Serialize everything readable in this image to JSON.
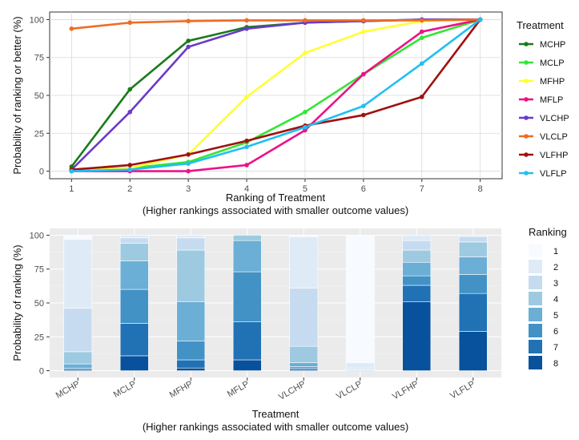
{
  "chart_data": [
    {
      "type": "line",
      "xlabel": "Ranking of Treatment",
      "xlabel_sub": "(Higher rankings associated with smaller outcome values)",
      "ylabel": "Probability of ranking or better (%)",
      "x": [
        1,
        2,
        3,
        4,
        5,
        6,
        7,
        8
      ],
      "xticks": [
        "1",
        "2",
        "3",
        "4",
        "5",
        "6",
        "7",
        "8"
      ],
      "yticks": [
        0,
        25,
        50,
        75,
        100
      ],
      "ylim": [
        0,
        100
      ],
      "legend_title": "Treatment",
      "legend_position": "right",
      "series": [
        {
          "name": "MCHP",
          "color": "#1a7a1a",
          "values": [
            3,
            54,
            86,
            95,
            98,
            99,
            100,
            100
          ]
        },
        {
          "name": "MCLP",
          "color": "#33e633",
          "values": [
            1,
            2,
            6,
            19,
            39,
            64,
            88,
            100
          ]
        },
        {
          "name": "MFHP",
          "color": "#ffff33",
          "values": [
            0,
            2,
            11,
            49,
            78,
            92,
            99,
            100
          ]
        },
        {
          "name": "MFLP",
          "color": "#ee1187",
          "values": [
            0,
            0,
            0,
            4,
            27,
            64,
            92,
            100
          ]
        },
        {
          "name": "VLCHP",
          "color": "#6a3acb",
          "values": [
            1,
            39,
            82,
            94,
            98,
            99,
            100,
            100
          ]
        },
        {
          "name": "VLCLP",
          "color": "#ef6c23",
          "values": [
            94,
            98,
            99,
            99.5,
            99.5,
            99.5,
            99.5,
            100
          ]
        },
        {
          "name": "VLFHP",
          "color": "#a01010",
          "values": [
            1,
            4,
            11,
            20,
            30,
            37,
            49,
            100
          ]
        },
        {
          "name": "VLFLP",
          "color": "#22bff2",
          "values": [
            0,
            1,
            5,
            16,
            29,
            43,
            71,
            100
          ]
        }
      ]
    },
    {
      "type": "bar",
      "stacked": true,
      "xlabel": "Treatment",
      "xlabel_sub": "(Higher rankings associated with smaller outcome values)",
      "ylabel": "Probability of ranking (%)",
      "categories": [
        "MCHP",
        "MCLP",
        "MFHP",
        "MFLP",
        "VLCHP",
        "VLCLP",
        "VLFHP",
        "VLFLP"
      ],
      "yticks": [
        0,
        25,
        50,
        75,
        100
      ],
      "ylim": [
        0,
        100
      ],
      "legend_title": "Ranking",
      "legend_position": "right",
      "stack_order_bottom_to_top": [
        "8",
        "7",
        "6",
        "5",
        "4",
        "3",
        "2",
        "1"
      ],
      "series": [
        {
          "name": "1",
          "color": "#f7fbff",
          "values": [
            3,
            0,
            0,
            0,
            1,
            94,
            0,
            0
          ]
        },
        {
          "name": "2",
          "color": "#deebf7",
          "values": [
            51,
            2,
            2,
            0,
            38,
            4,
            4,
            1
          ]
        },
        {
          "name": "3",
          "color": "#c6dbef",
          "values": [
            32,
            4,
            9,
            0,
            43,
            1,
            7,
            4
          ]
        },
        {
          "name": "4",
          "color": "#9ecae1",
          "values": [
            9,
            13,
            38,
            4,
            12,
            0.5,
            9,
            11
          ]
        },
        {
          "name": "5",
          "color": "#6baed6",
          "values": [
            3,
            21,
            29,
            23,
            3,
            0.5,
            10,
            13
          ]
        },
        {
          "name": "6",
          "color": "#4292c6",
          "values": [
            1,
            25,
            14,
            37,
            1,
            0,
            7,
            14
          ]
        },
        {
          "name": "7",
          "color": "#2171b5",
          "values": [
            0,
            24,
            6,
            28,
            1,
            0,
            12,
            28
          ]
        },
        {
          "name": "8",
          "color": "#08519c",
          "values": [
            1,
            11,
            2,
            8,
            1,
            0,
            51,
            29
          ]
        }
      ]
    }
  ]
}
